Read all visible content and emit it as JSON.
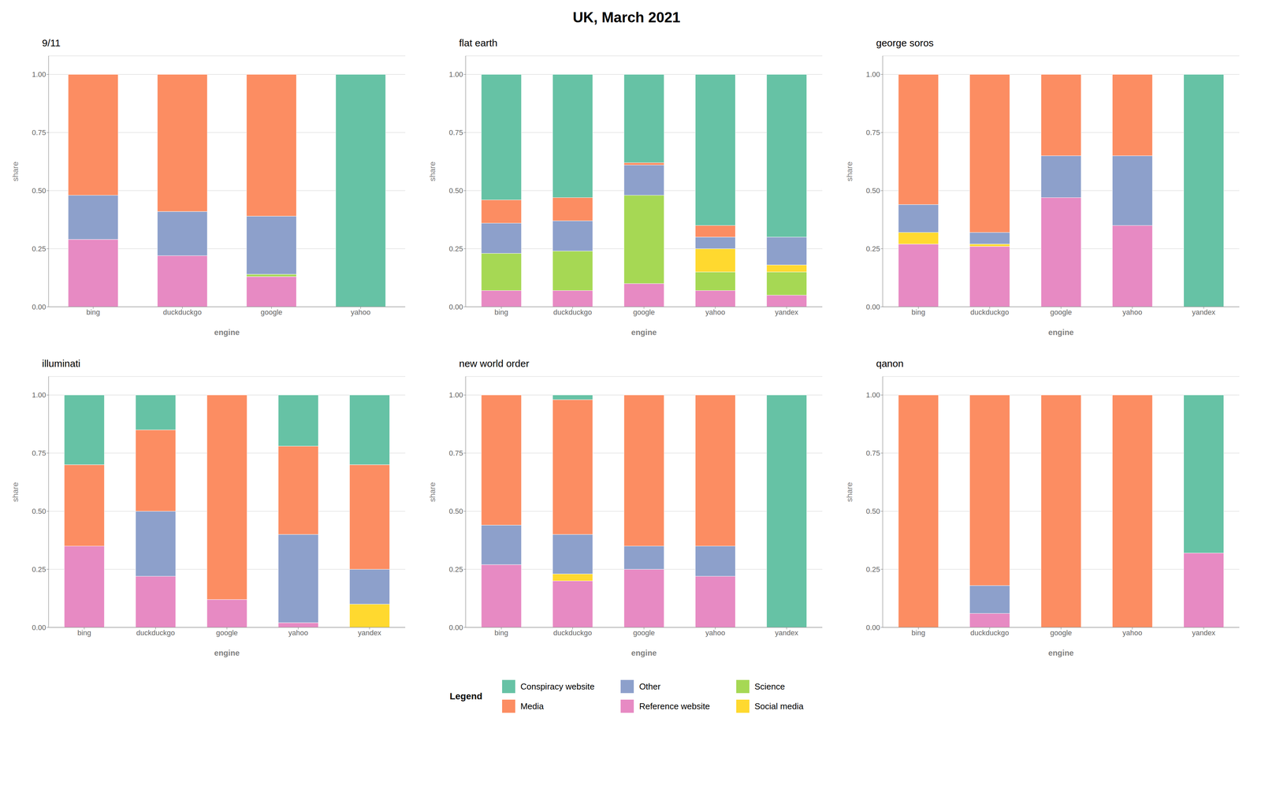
{
  "title": "UK, March 2021",
  "legend_title": "Legend",
  "legend": "bottom",
  "chart_data": [
    {
      "type": "bar",
      "title": "9/11",
      "xlabel": "engine",
      "ylabel": "share",
      "stacked": true,
      "grid": true,
      "categories": [
        "bing",
        "duckduckgo",
        "google",
        "yahoo"
      ],
      "series": [
        {
          "name": "Reference website",
          "color": "#e78ac3",
          "values": [
            0.29,
            0.22,
            0.13,
            0.0
          ]
        },
        {
          "name": "Science",
          "color": "#a6d854",
          "values": [
            0.0,
            0.0,
            0.01,
            0.0
          ]
        },
        {
          "name": "Social media",
          "color": "#ffd92f",
          "values": [
            0.0,
            0.0,
            0.0,
            0.0
          ]
        },
        {
          "name": "Other",
          "color": "#8da0cb",
          "values": [
            0.19,
            0.19,
            0.25,
            0.0
          ]
        },
        {
          "name": "Media",
          "color": "#fc8d62",
          "values": [
            0.52,
            0.59,
            0.61,
            0.0
          ]
        },
        {
          "name": "Conspiracy website",
          "color": "#66c2a5",
          "values": [
            0.0,
            0.0,
            0.0,
            1.0
          ]
        }
      ],
      "ylim": [
        0,
        1.08
      ],
      "yticks": [
        {
          "value": 0,
          "label": "0.00"
        },
        0.25,
        {
          "value": 0.5,
          "label": "0.50"
        },
        0.75,
        {
          "value": 1,
          "label": "1.00"
        }
      ]
    },
    {
      "type": "bar",
      "title": "flat earth",
      "xlabel": "engine",
      "ylabel": "share",
      "stacked": true,
      "grid": true,
      "categories": [
        "bing",
        "duckduckgo",
        "google",
        "yahoo",
        "yandex"
      ],
      "series": [
        {
          "name": "Reference website",
          "color": "#e78ac3",
          "values": [
            0.07,
            0.07,
            0.1,
            0.07,
            0.05
          ]
        },
        {
          "name": "Science",
          "color": "#a6d854",
          "values": [
            0.16,
            0.17,
            0.38,
            0.08,
            0.1
          ]
        },
        {
          "name": "Social media",
          "color": "#ffd92f",
          "values": [
            0.0,
            0.0,
            0.0,
            0.1,
            0.03
          ]
        },
        {
          "name": "Other",
          "color": "#8da0cb",
          "values": [
            0.13,
            0.13,
            0.13,
            0.05,
            0.12
          ]
        },
        {
          "name": "Media",
          "color": "#fc8d62",
          "values": [
            0.1,
            0.1,
            0.01,
            0.05,
            0.0
          ]
        },
        {
          "name": "Conspiracy website",
          "color": "#66c2a5",
          "values": [
            0.54,
            0.53,
            0.38,
            0.65,
            0.7
          ]
        }
      ],
      "ylim": [
        0,
        1.08
      ],
      "yticks": [
        {
          "value": 0,
          "label": "0.00"
        },
        0.25,
        {
          "value": 0.5,
          "label": "0.50"
        },
        0.75,
        {
          "value": 1,
          "label": "1.00"
        }
      ]
    },
    {
      "type": "bar",
      "title": "george soros",
      "xlabel": "engine",
      "ylabel": "share",
      "stacked": true,
      "grid": true,
      "categories": [
        "bing",
        "duckduckgo",
        "google",
        "yahoo",
        "yandex"
      ],
      "series": [
        {
          "name": "Reference website",
          "color": "#e78ac3",
          "values": [
            0.27,
            0.26,
            0.47,
            0.35,
            0.0
          ]
        },
        {
          "name": "Science",
          "color": "#a6d854",
          "values": [
            0.0,
            0.0,
            0.0,
            0.0,
            0.0
          ]
        },
        {
          "name": "Social media",
          "color": "#ffd92f",
          "values": [
            0.05,
            0.01,
            0.0,
            0.0,
            0.0
          ]
        },
        {
          "name": "Other",
          "color": "#8da0cb",
          "values": [
            0.12,
            0.05,
            0.18,
            0.3,
            0.0
          ]
        },
        {
          "name": "Media",
          "color": "#fc8d62",
          "values": [
            0.56,
            0.68,
            0.35,
            0.35,
            0.0
          ]
        },
        {
          "name": "Conspiracy website",
          "color": "#66c2a5",
          "values": [
            0.0,
            0.0,
            0.0,
            0.0,
            1.0
          ]
        }
      ],
      "ylim": [
        0,
        1.08
      ],
      "yticks": [
        {
          "value": 0,
          "label": "0.00"
        },
        0.25,
        {
          "value": 0.5,
          "label": "0.50"
        },
        0.75,
        {
          "value": 1,
          "label": "1.00"
        }
      ]
    },
    {
      "type": "bar",
      "title": "illuminati",
      "xlabel": "engine",
      "ylabel": "share",
      "stacked": true,
      "grid": true,
      "categories": [
        "bing",
        "duckduckgo",
        "google",
        "yahoo",
        "yandex"
      ],
      "series": [
        {
          "name": "Reference website",
          "color": "#e78ac3",
          "values": [
            0.35,
            0.22,
            0.12,
            0.02,
            0.0
          ]
        },
        {
          "name": "Science",
          "color": "#a6d854",
          "values": [
            0.0,
            0.0,
            0.0,
            0.0,
            0.0
          ]
        },
        {
          "name": "Social media",
          "color": "#ffd92f",
          "values": [
            0.0,
            0.0,
            0.0,
            0.0,
            0.1
          ]
        },
        {
          "name": "Other",
          "color": "#8da0cb",
          "values": [
            0.0,
            0.28,
            0.0,
            0.38,
            0.15
          ]
        },
        {
          "name": "Media",
          "color": "#fc8d62",
          "values": [
            0.35,
            0.35,
            0.88,
            0.38,
            0.45
          ]
        },
        {
          "name": "Conspiracy website",
          "color": "#66c2a5",
          "values": [
            0.3,
            0.15,
            0.0,
            0.22,
            0.3
          ]
        }
      ],
      "ylim": [
        0,
        1.08
      ],
      "yticks": [
        {
          "value": 0,
          "label": "0.00"
        },
        0.25,
        {
          "value": 0.5,
          "label": "0.50"
        },
        0.75,
        {
          "value": 1,
          "label": "1.00"
        }
      ]
    },
    {
      "type": "bar",
      "title": "new world order",
      "xlabel": "engine",
      "ylabel": "share",
      "stacked": true,
      "grid": true,
      "categories": [
        "bing",
        "duckduckgo",
        "google",
        "yahoo",
        "yandex"
      ],
      "series": [
        {
          "name": "Reference website",
          "color": "#e78ac3",
          "values": [
            0.27,
            0.2,
            0.25,
            0.22,
            0.0
          ]
        },
        {
          "name": "Science",
          "color": "#a6d854",
          "values": [
            0.0,
            0.0,
            0.0,
            0.0,
            0.0
          ]
        },
        {
          "name": "Social media",
          "color": "#ffd92f",
          "values": [
            0.0,
            0.03,
            0.0,
            0.0,
            0.0
          ]
        },
        {
          "name": "Other",
          "color": "#8da0cb",
          "values": [
            0.17,
            0.17,
            0.1,
            0.13,
            0.0
          ]
        },
        {
          "name": "Media",
          "color": "#fc8d62",
          "values": [
            0.56,
            0.58,
            0.65,
            0.65,
            0.0
          ]
        },
        {
          "name": "Conspiracy website",
          "color": "#66c2a5",
          "values": [
            0.0,
            0.02,
            0.0,
            0.0,
            1.0
          ]
        }
      ],
      "ylim": [
        0,
        1.08
      ],
      "yticks": [
        {
          "value": 0,
          "label": "0.00"
        },
        0.25,
        {
          "value": 0.5,
          "label": "0.50"
        },
        0.75,
        {
          "value": 1,
          "label": "1.00"
        }
      ]
    },
    {
      "type": "bar",
      "title": "qanon",
      "xlabel": "engine",
      "ylabel": "share",
      "stacked": true,
      "grid": true,
      "categories": [
        "bing",
        "duckduckgo",
        "google",
        "yahoo",
        "yandex"
      ],
      "series": [
        {
          "name": "Reference website",
          "color": "#e78ac3",
          "values": [
            0.0,
            0.06,
            0.0,
            0.0,
            0.32
          ]
        },
        {
          "name": "Science",
          "color": "#a6d854",
          "values": [
            0.0,
            0.0,
            0.0,
            0.0,
            0.0
          ]
        },
        {
          "name": "Social media",
          "color": "#ffd92f",
          "values": [
            0.0,
            0.0,
            0.0,
            0.0,
            0.0
          ]
        },
        {
          "name": "Other",
          "color": "#8da0cb",
          "values": [
            0.0,
            0.12,
            0.0,
            0.0,
            0.0
          ]
        },
        {
          "name": "Media",
          "color": "#fc8d62",
          "values": [
            1.0,
            0.82,
            1.0,
            1.0,
            0.0
          ]
        },
        {
          "name": "Conspiracy website",
          "color": "#66c2a5",
          "values": [
            0.0,
            0.0,
            0.0,
            0.0,
            0.68
          ]
        }
      ],
      "ylim": [
        0,
        1.08
      ],
      "yticks": [
        {
          "value": 0,
          "label": "0.00"
        },
        0.25,
        {
          "value": 0.5,
          "label": "0.50"
        },
        0.75,
        {
          "value": 1,
          "label": "1.00"
        }
      ]
    }
  ]
}
